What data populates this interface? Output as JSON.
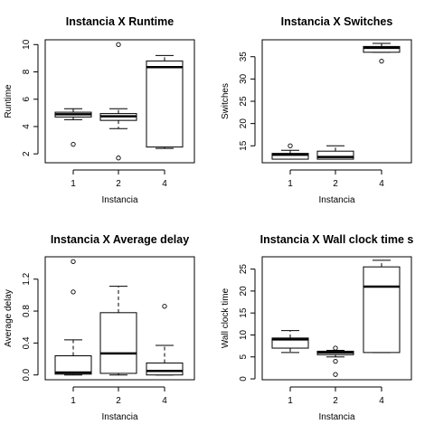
{
  "chart_data": [
    {
      "type": "boxplot",
      "title": "Instancia X Runtime",
      "xlabel": "Instancia",
      "ylabel": "Runtime",
      "categories": [
        "1",
        "2",
        "4"
      ],
      "yticks": [
        2,
        4,
        6,
        8,
        10
      ],
      "ylim": [
        1.35,
        10.35
      ],
      "boxes": [
        {
          "category": "1",
          "whisker_low": 4.5,
          "q1": 4.7,
          "median": 4.9,
          "q3": 5.05,
          "whisker_high": 5.3,
          "outliers": [
            2.7
          ]
        },
        {
          "category": "2",
          "whisker_low": 3.85,
          "q1": 4.45,
          "median": 4.75,
          "q3": 4.95,
          "whisker_high": 5.3,
          "outliers": [
            1.7,
            10.0
          ]
        },
        {
          "category": "4",
          "whisker_low": 2.4,
          "q1": 2.5,
          "median": 8.35,
          "q3": 8.8,
          "whisker_high": 9.2,
          "outliers": []
        }
      ]
    },
    {
      "type": "boxplot",
      "title": "Instancia X Switches",
      "xlabel": "Instancia",
      "ylabel": "Switches",
      "categories": [
        "1",
        "2",
        "4"
      ],
      "yticks": [
        15,
        20,
        25,
        30,
        35
      ],
      "ylim": [
        11.2,
        38.8
      ],
      "boxes": [
        {
          "category": "1",
          "whisker_low": 12.0,
          "q1": 12.0,
          "median": 13.0,
          "q3": 13.3,
          "whisker_high": 14.0,
          "outliers": [
            15.0
          ]
        },
        {
          "category": "2",
          "whisker_low": 12.0,
          "q1": 12.0,
          "median": 12.5,
          "q3": 13.8,
          "whisker_high": 15.0,
          "outliers": []
        },
        {
          "category": "4",
          "whisker_low": 36.0,
          "q1": 36.0,
          "median": 37.0,
          "q3": 37.3,
          "whisker_high": 38.0,
          "outliers": [
            34.0
          ]
        }
      ]
    },
    {
      "type": "boxplot",
      "title": "Instancia X Average delay",
      "xlabel": "Instancia",
      "ylabel": "Average delay",
      "categories": [
        "1",
        "2",
        "4"
      ],
      "yticks": [
        0.0,
        0.4,
        0.8,
        1.2
      ],
      "ytick_labels": [
        "0.0",
        "0.4",
        "0.8",
        "1.2"
      ],
      "ylim": [
        -0.06,
        1.48
      ],
      "boxes": [
        {
          "category": "1",
          "whisker_low": 0.0,
          "q1": 0.01,
          "median": 0.03,
          "q3": 0.24,
          "whisker_high": 0.44,
          "outliers": [
            1.04,
            1.42
          ]
        },
        {
          "category": "2",
          "whisker_low": 0.0,
          "q1": 0.02,
          "median": 0.27,
          "q3": 0.78,
          "whisker_high": 1.11,
          "outliers": []
        },
        {
          "category": "4",
          "whisker_low": 0.0,
          "q1": 0.0,
          "median": 0.05,
          "q3": 0.15,
          "whisker_high": 0.37,
          "outliers": [
            0.86
          ]
        }
      ]
    },
    {
      "type": "boxplot",
      "title": "Instancia X Wall clock time s",
      "xlabel": "Instancia",
      "ylabel": "Wall clock time",
      "categories": [
        "1",
        "2",
        "4"
      ],
      "yticks": [
        0,
        5,
        10,
        15,
        20,
        25
      ],
      "ylim": [
        -0.2,
        27.8
      ],
      "boxes": [
        {
          "category": "1",
          "whisker_low": 6.0,
          "q1": 7.0,
          "median": 9.0,
          "q3": 9.3,
          "whisker_high": 11.0,
          "outliers": []
        },
        {
          "category": "2",
          "whisker_low": 5.0,
          "q1": 5.5,
          "median": 6.0,
          "q3": 6.3,
          "whisker_high": 6.5,
          "outliers": [
            7.0,
            4.0,
            1.0
          ]
        },
        {
          "category": "4",
          "whisker_low": 6.0,
          "q1": 6.0,
          "median": 21.0,
          "q3": 25.5,
          "whisker_high": 27.0,
          "outliers": []
        }
      ]
    }
  ]
}
